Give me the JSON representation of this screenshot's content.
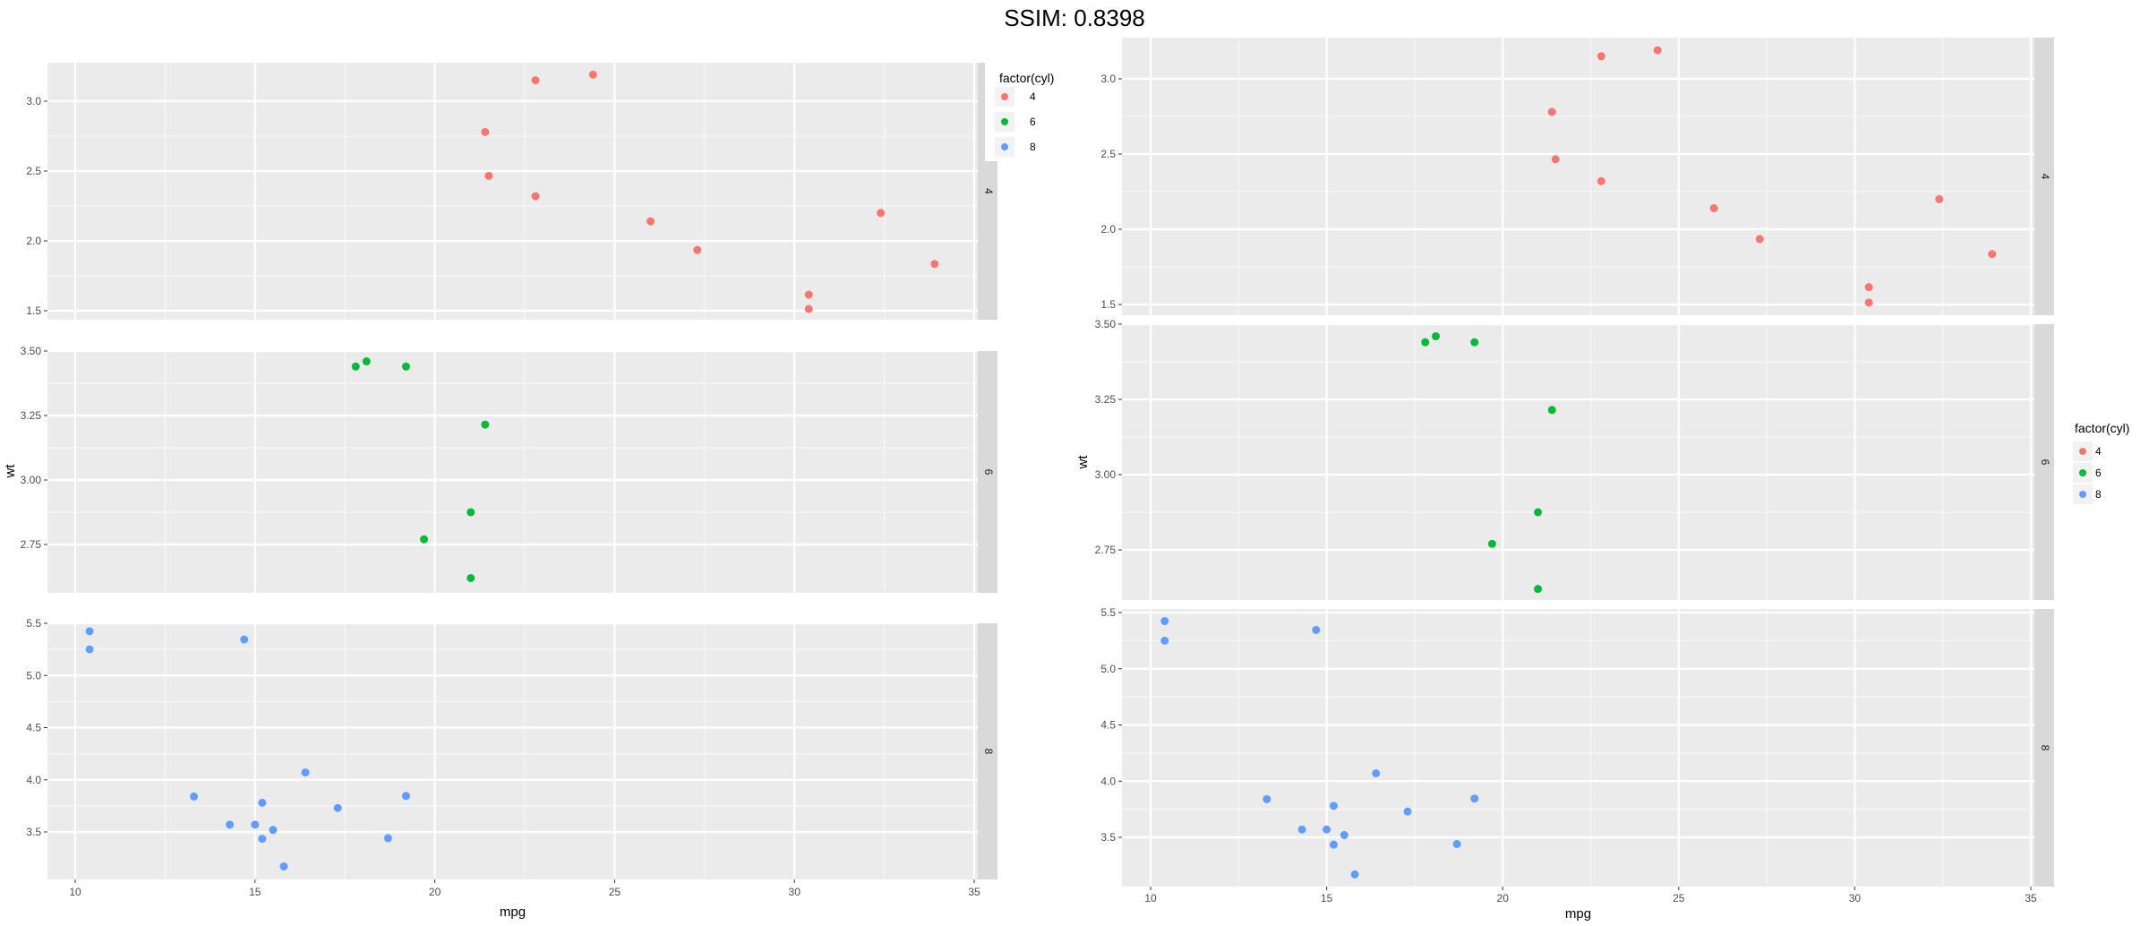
{
  "header": {
    "title": "SSIM: 0.8398"
  },
  "colors": {
    "cyl_4": "#F8766D",
    "cyl_6": "#00BA38",
    "cyl_8": "#619CFF",
    "panel_bg": "#EBEBEB",
    "strip_bg": "#D9D9D9",
    "grid": "#FFFFFF"
  },
  "chart_data": [
    {
      "type": "scatter",
      "xlabel": "mpg",
      "ylabel": "wt",
      "xlim": [
        10.4,
        33.9
      ],
      "x_ticks": [
        10,
        15,
        20,
        25,
        30,
        35
      ],
      "legend": {
        "title": "factor(cyl)",
        "position": "top-right",
        "entries": [
          "4",
          "6",
          "8"
        ]
      },
      "facets": [
        {
          "label": "4",
          "ylim": [
            1.513,
            3.19
          ],
          "y_ticks": [
            "1.5",
            "2.0",
            "2.5",
            "3.0"
          ],
          "x": [
            22.8,
            24.4,
            22.8,
            32.4,
            30.4,
            33.9,
            21.5,
            27.3,
            26.0,
            30.4,
            21.4
          ],
          "y": [
            2.32,
            3.19,
            3.15,
            2.2,
            1.615,
            1.835,
            2.465,
            1.935,
            2.14,
            1.513,
            2.78
          ]
        },
        {
          "label": "6",
          "ylim": [
            2.62,
            3.46
          ],
          "y_ticks": [
            "2.75",
            "3.00",
            "3.25",
            "3.50"
          ],
          "x": [
            21.0,
            21.0,
            21.4,
            18.1,
            19.2,
            17.8,
            19.7
          ],
          "y": [
            2.62,
            2.875,
            3.215,
            3.46,
            3.44,
            3.44,
            2.77
          ]
        },
        {
          "label": "8",
          "ylim": [
            3.17,
            5.424
          ],
          "y_ticks": [
            "3.5",
            "4.0",
            "4.5",
            "5.0",
            "5.5"
          ],
          "x": [
            18.7,
            14.3,
            16.4,
            17.3,
            15.2,
            10.4,
            10.4,
            14.7,
            15.5,
            15.2,
            13.3,
            19.2,
            15.8,
            15.0
          ],
          "y": [
            3.44,
            3.57,
            4.07,
            3.73,
            3.78,
            5.25,
            5.424,
            5.345,
            3.52,
            3.435,
            3.84,
            3.845,
            3.17,
            3.57
          ]
        }
      ]
    },
    {
      "type": "scatter",
      "xlabel": "mpg",
      "ylabel": "wt",
      "xlim": [
        10.4,
        33.9
      ],
      "x_ticks": [
        10,
        15,
        20,
        25,
        30,
        35
      ],
      "legend": {
        "title": "factor(cyl)",
        "position": "right",
        "entries": [
          "4",
          "6",
          "8"
        ]
      },
      "facets": [
        {
          "label": "4",
          "ylim": [
            1.513,
            3.19
          ],
          "y_ticks": [
            "1.5",
            "2.0",
            "2.5",
            "3.0"
          ],
          "x": [
            22.8,
            24.4,
            22.8,
            32.4,
            30.4,
            33.9,
            21.5,
            27.3,
            26.0,
            30.4,
            21.4
          ],
          "y": [
            2.32,
            3.19,
            3.15,
            2.2,
            1.615,
            1.835,
            2.465,
            1.935,
            2.14,
            1.513,
            2.78
          ]
        },
        {
          "label": "6",
          "ylim": [
            2.62,
            3.46
          ],
          "y_ticks": [
            "2.75",
            "3.00",
            "3.25",
            "3.50"
          ],
          "x": [
            21.0,
            21.0,
            21.4,
            18.1,
            19.2,
            17.8,
            19.7
          ],
          "y": [
            2.62,
            2.875,
            3.215,
            3.46,
            3.44,
            3.44,
            2.77
          ]
        },
        {
          "label": "8",
          "ylim": [
            3.17,
            5.424
          ],
          "y_ticks": [
            "3.5",
            "4.0",
            "4.5",
            "5.0",
            "5.5"
          ],
          "x": [
            18.7,
            14.3,
            16.4,
            17.3,
            15.2,
            10.4,
            10.4,
            14.7,
            15.5,
            15.2,
            13.3,
            19.2,
            15.8,
            15.0
          ],
          "y": [
            3.44,
            3.57,
            4.07,
            3.73,
            3.78,
            5.25,
            5.424,
            5.345,
            3.52,
            3.435,
            3.84,
            3.845,
            3.17,
            3.57
          ]
        }
      ]
    }
  ]
}
